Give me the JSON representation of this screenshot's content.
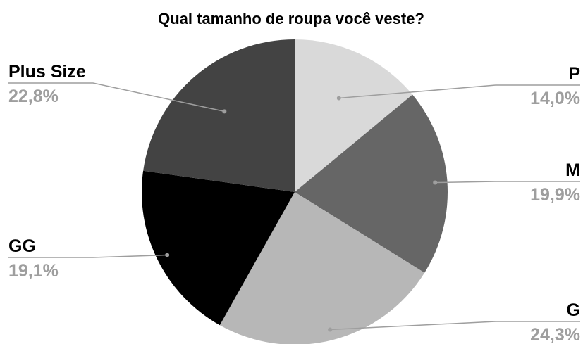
{
  "chart_data": {
    "type": "pie",
    "title": "Qual tamanho de roupa você veste?",
    "slices": [
      {
        "label": "P",
        "value": 14.0,
        "display": "14,0%",
        "color": "#d9d9d9"
      },
      {
        "label": "M",
        "value": 19.9,
        "display": "19,9%",
        "color": "#666666"
      },
      {
        "label": "G",
        "value": 24.3,
        "display": "24,3%",
        "color": "#b7b7b7"
      },
      {
        "label": "GG",
        "value": 19.1,
        "display": "19,1%",
        "color": "#000000"
      },
      {
        "label": "Plus Size",
        "value": 22.8,
        "display": "22,8%",
        "color": "#434343"
      }
    ],
    "start_angle": "12 o'clock",
    "direction": "clockwise",
    "legend": "none"
  }
}
